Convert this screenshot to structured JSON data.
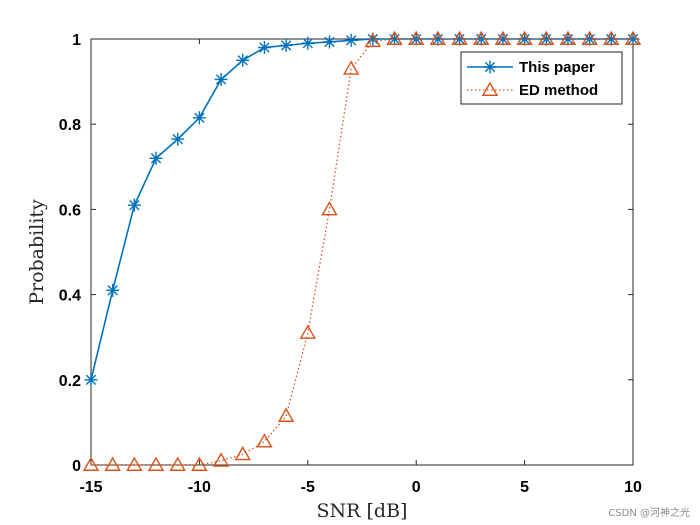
{
  "chart_data": {
    "type": "line",
    "title": "",
    "xlabel": "SNR [dB]",
    "ylabel": "Probability",
    "xlim": [
      -15,
      10
    ],
    "ylim": [
      0,
      1
    ],
    "xticks": [
      -15,
      -10,
      -5,
      0,
      5,
      10
    ],
    "yticks": [
      0,
      0.2,
      0.4,
      0.6,
      0.8,
      1
    ],
    "xtick_labels": [
      "-15",
      "-10",
      "-5",
      "0",
      "5",
      "10"
    ],
    "ytick_labels": [
      "0",
      "0.2",
      "0.4",
      "0.6",
      "0.8",
      "1"
    ],
    "legend_position": "top-right",
    "x": [
      -15,
      -14,
      -13,
      -12,
      -11,
      -10,
      -9,
      -8,
      -7,
      -6,
      -5,
      -4,
      -3,
      -2,
      -1,
      0,
      1,
      2,
      3,
      4,
      5,
      6,
      7,
      8,
      9,
      10
    ],
    "series": [
      {
        "name": "This paper",
        "color": "#0072BD",
        "marker": "asterisk",
        "line": "solid",
        "values": [
          0.2,
          0.41,
          0.61,
          0.72,
          0.765,
          0.815,
          0.905,
          0.95,
          0.98,
          0.985,
          0.99,
          0.993,
          0.997,
          1,
          1,
          1,
          1,
          1,
          1,
          1,
          1,
          1,
          1,
          1,
          1,
          1
        ]
      },
      {
        "name": "ED method",
        "color": "#D95319",
        "marker": "triangle",
        "line": "dotted",
        "values": [
          0,
          0,
          0,
          0,
          0,
          0,
          0.01,
          0.025,
          0.055,
          0.115,
          0.31,
          0.6,
          0.93,
          0.995,
          1,
          1,
          1,
          1,
          1,
          1,
          1,
          1,
          1,
          1,
          1,
          1
        ]
      }
    ]
  },
  "watermark": "CSDN @河神之光"
}
